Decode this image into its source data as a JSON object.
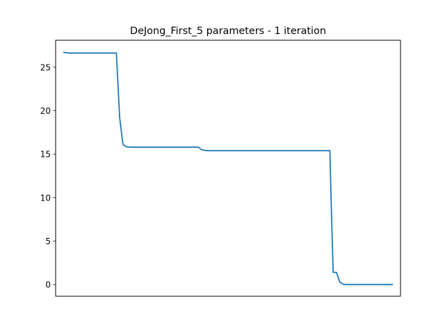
{
  "chart_data": {
    "type": "line",
    "title": "DeJong_First_5 parameters - 1 iteration",
    "xlabel": "",
    "ylabel": "",
    "x_ticks_visible": false,
    "xlim": [
      -2.5,
      102.5
    ],
    "ylim": [
      -1.34,
      28.1
    ],
    "yticks": [
      0,
      5,
      10,
      15,
      20,
      25
    ],
    "ytick_labels": [
      "0",
      "5",
      "10",
      "15",
      "20",
      "25"
    ],
    "grid": false,
    "legend": "none",
    "line_color": "#1f77b4",
    "series": [
      {
        "x": [
          0,
          1,
          2,
          5,
          10,
          15,
          16,
          17,
          18,
          19,
          20,
          22,
          25,
          30,
          35,
          40,
          41,
          42,
          43,
          44,
          45,
          50,
          60,
          70,
          80,
          81,
          81.5,
          82,
          83,
          84,
          85,
          86,
          88,
          90,
          100
        ],
        "values": [
          26.7,
          26.65,
          26.63,
          26.63,
          26.63,
          26.63,
          26.63,
          19.2,
          16.1,
          15.85,
          15.8,
          15.8,
          15.8,
          15.8,
          15.8,
          15.8,
          15.8,
          15.5,
          15.42,
          15.4,
          15.4,
          15.4,
          15.4,
          15.4,
          15.4,
          15.4,
          8.0,
          1.4,
          1.4,
          0.3,
          0.05,
          0.0,
          0.0,
          0.0,
          0.0
        ]
      }
    ]
  }
}
